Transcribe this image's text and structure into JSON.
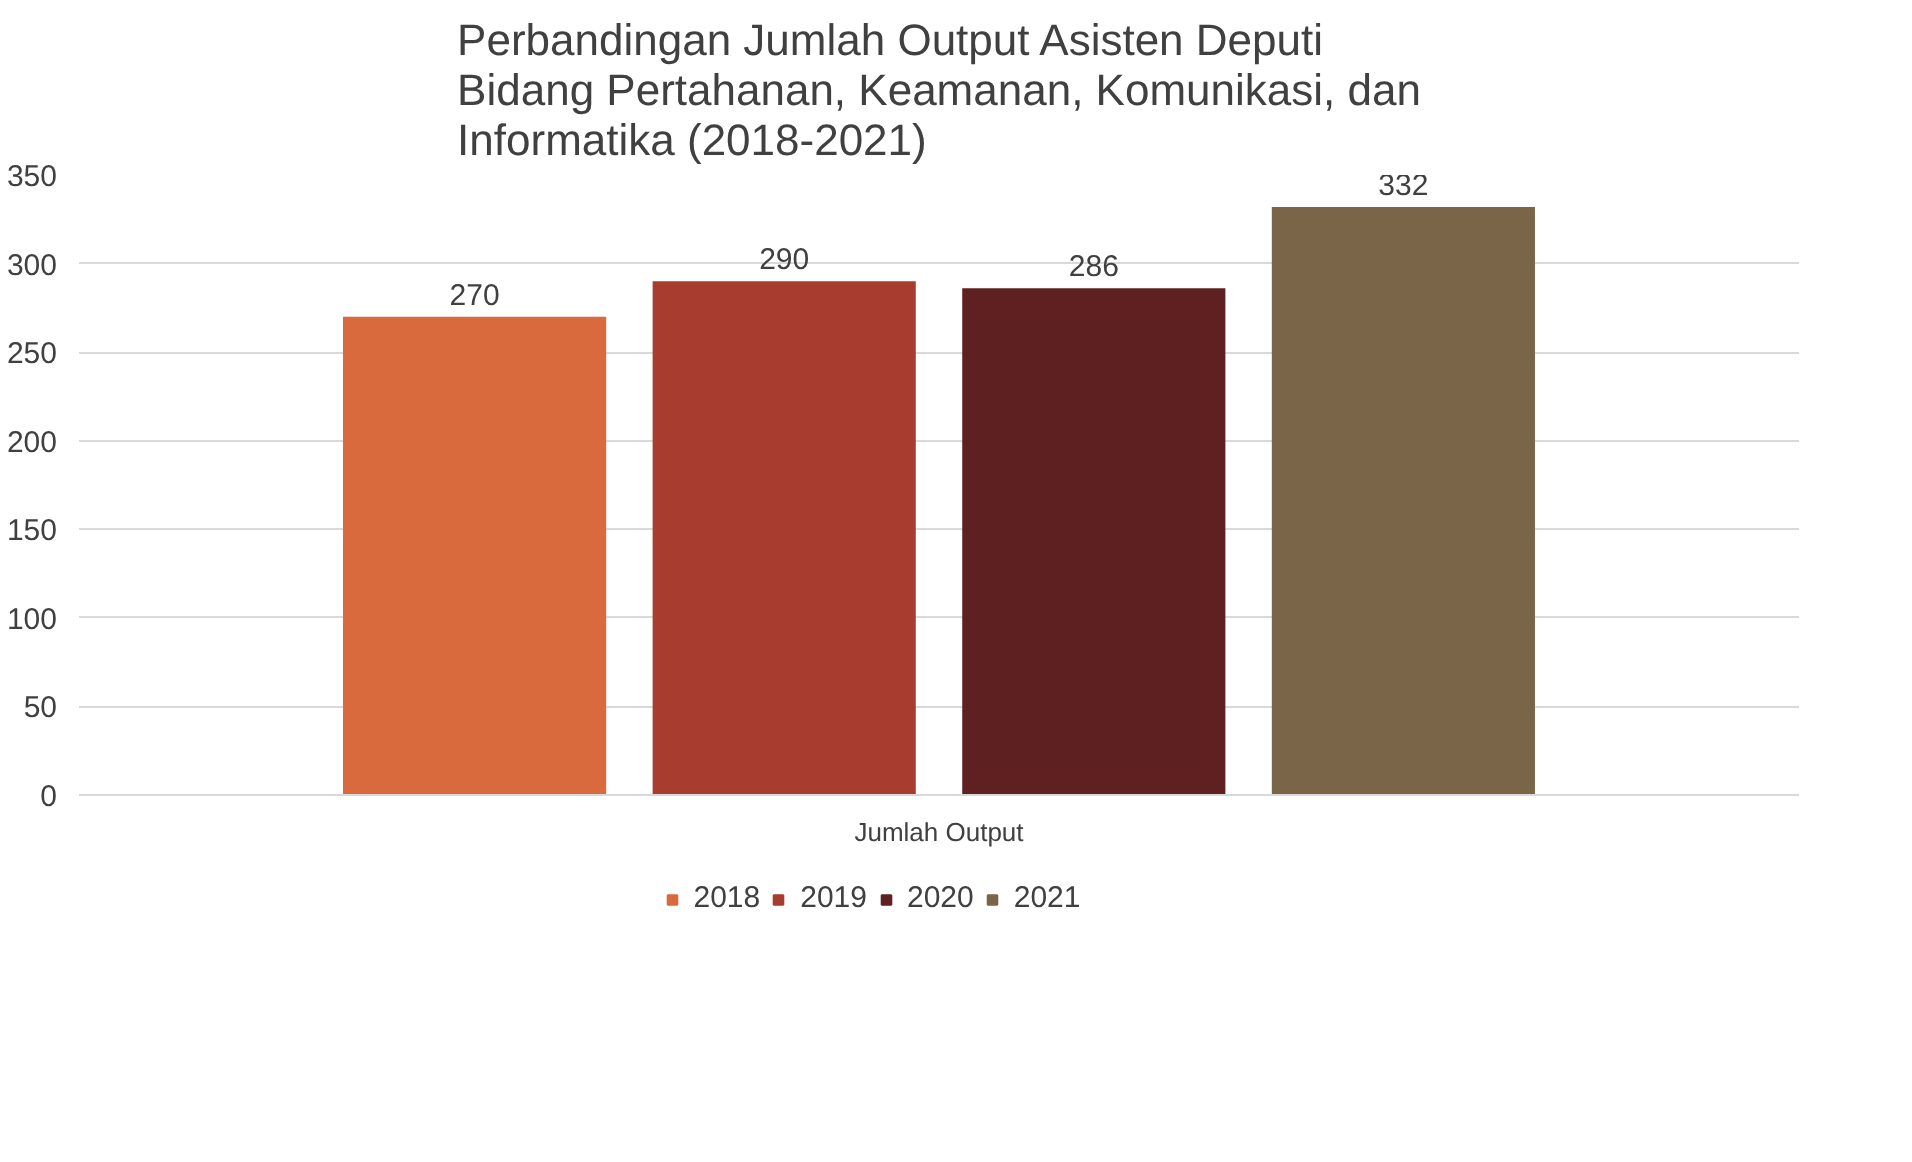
{
  "chart_data": {
    "type": "bar",
    "title": "Perbandingan Jumlah Output Asisten Deputi Bidang Pertahanan, Keamanan, Komunikasi, dan Informatika (2018-2021)",
    "categories": [
      "Jumlah Output"
    ],
    "series": [
      {
        "name": "2018",
        "color": "#d86a3e",
        "values": [
          270
        ]
      },
      {
        "name": "2019",
        "color": "#a83c2f",
        "values": [
          290
        ]
      },
      {
        "name": "2020",
        "color": "#5e2020",
        "values": [
          286
        ]
      },
      {
        "name": "2021",
        "color": "#7b6548",
        "values": [
          332
        ]
      }
    ],
    "ylim": [
      0,
      350
    ],
    "yticks": [
      0,
      50,
      100,
      150,
      200,
      250,
      300,
      350
    ],
    "grid": "y",
    "legend": "bottom",
    "data_labels": true
  }
}
